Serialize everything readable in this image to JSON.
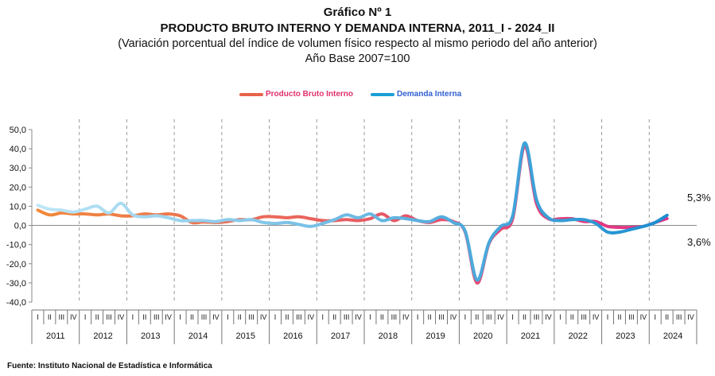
{
  "titles": {
    "line1": "Gráfico Nº 1",
    "line2": "PRODUCTO BRUTO INTERNO Y DEMANDA INTERNA, 2011_I - 2024_II",
    "line3": "(Variación porcentual del índice de volumen físico respecto al mismo periodo del año anterior)",
    "line4": "Año Base 2007=100"
  },
  "legend": [
    {
      "label": "Producto Bruto Interno",
      "color": "#e8624a",
      "text_color": "#e0306a"
    },
    {
      "label": "Demanda Interna",
      "color": "#1a9fd6",
      "text_color": "#3060d0"
    }
  ],
  "source": "Fuente: Instituto Nacional de Estadística e Informática",
  "chart_data": {
    "type": "line",
    "ylim": [
      -40,
      50
    ],
    "yticks": [
      "50,0",
      "40,0",
      "30,0",
      "20,0",
      "10,0",
      "0,0",
      "-10,0",
      "-20,0",
      "-30,0",
      "-40,0"
    ],
    "grid": "vertical dashed at year boundaries",
    "quarter_labels": [
      "I",
      "II",
      "III",
      "IV"
    ],
    "years": [
      "2011",
      "2012",
      "2013",
      "2014",
      "2015",
      "2016",
      "2017",
      "2018",
      "2019",
      "2020",
      "2021",
      "2022",
      "2023",
      "2024"
    ],
    "end_labels": {
      "demanda": "5,3%",
      "pbi": "3,6%"
    },
    "series": [
      {
        "name": "Producto Bruto Interno",
        "values": [
          8.0,
          5.5,
          6.5,
          6.0,
          6.0,
          5.5,
          6.0,
          5.0,
          5.0,
          6.0,
          5.5,
          6.0,
          5.0,
          1.5,
          1.8,
          1.5,
          2.0,
          3.0,
          3.0,
          4.5,
          4.5,
          4.0,
          4.5,
          3.5,
          2.5,
          2.5,
          3.0,
          2.5,
          3.5,
          6.0,
          2.5,
          5.0,
          2.5,
          1.5,
          3.0,
          2.0,
          -3.5,
          -30.0,
          -9.5,
          -2.0,
          3.5,
          41.5,
          11.5,
          3.5,
          3.5,
          3.5,
          2.0,
          2.0,
          -0.5,
          -1.0,
          -1.0,
          -0.5,
          1.5,
          3.6
        ],
        "color_start": "#f08a3c",
        "color_end": "#e0308a"
      },
      {
        "name": "Demanda Interna",
        "values": [
          10.5,
          8.5,
          8.0,
          7.0,
          8.5,
          10.0,
          6.5,
          11.5,
          5.5,
          4.5,
          5.0,
          4.0,
          2.5,
          2.5,
          2.5,
          2.0,
          3.0,
          2.5,
          3.0,
          1.5,
          1.0,
          1.5,
          0.5,
          -0.5,
          1.0,
          3.0,
          5.5,
          4.0,
          6.0,
          2.5,
          4.0,
          3.5,
          2.5,
          2.0,
          4.5,
          1.5,
          -3.0,
          -28.5,
          -9.0,
          -0.5,
          5.0,
          43.0,
          13.5,
          4.0,
          2.5,
          3.0,
          3.0,
          1.0,
          -3.5,
          -3.5,
          -2.0,
          -0.5,
          1.5,
          5.3
        ],
        "color_start": "#bfe6f7",
        "color_end": "#1a8ed0"
      }
    ]
  }
}
